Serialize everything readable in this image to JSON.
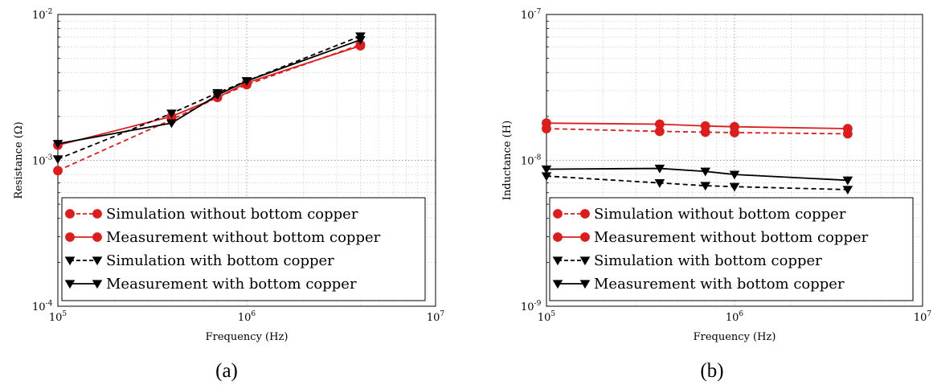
{
  "chart_data": [
    {
      "type": "line",
      "caption": "(a)",
      "xlabel": "Frequency (Hz)",
      "ylabel": "Resistance (Ω)",
      "xscale": "log",
      "yscale": "log",
      "xlim": [
        100000,
        10000000
      ],
      "ylim": [
        0.0001,
        0.01
      ],
      "x_ticks": [
        {
          "base": "10",
          "exp": "5"
        },
        {
          "base": "10",
          "exp": "6"
        },
        {
          "base": "10",
          "exp": "7"
        }
      ],
      "y_ticks": [
        {
          "base": "10",
          "exp": "-4"
        },
        {
          "base": "10",
          "exp": "-3"
        },
        {
          "base": "10",
          "exp": "-2"
        }
      ],
      "grid": true,
      "legend_position": "lower-right",
      "series": [
        {
          "name": "Simulation without bottom copper",
          "color": "#dd1c1c",
          "linestyle": "dashed",
          "marker": "circle",
          "x": [
            100000,
            400000,
            700000,
            1000000,
            4000000
          ],
          "y": [
            0.00085,
            0.0019,
            0.0027,
            0.0033,
            0.0062
          ]
        },
        {
          "name": "Measurement without bottom copper",
          "color": "#dd1c1c",
          "linestyle": "solid",
          "marker": "circle",
          "x": [
            100000,
            400000,
            700000,
            1000000,
            4000000
          ],
          "y": [
            0.00127,
            0.002,
            0.0027,
            0.0034,
            0.0061
          ]
        },
        {
          "name": "Simulation with bottom copper",
          "color": "#000000",
          "linestyle": "dashed",
          "marker": "triangle-down",
          "x": [
            100000,
            400000,
            700000,
            1000000,
            4000000
          ],
          "y": [
            0.00102,
            0.0021,
            0.0029,
            0.0035,
            0.0071
          ]
        },
        {
          "name": "Measurement with bottom copper",
          "color": "#000000",
          "linestyle": "solid",
          "marker": "triangle-down",
          "x": [
            100000,
            400000,
            700000,
            1000000,
            4000000
          ],
          "y": [
            0.0013,
            0.0018,
            0.0028,
            0.0035,
            0.0067
          ]
        }
      ]
    },
    {
      "type": "line",
      "caption": "(b)",
      "xlabel": "Frequency (Hz)",
      "ylabel": "Inductance (H)",
      "xscale": "log",
      "yscale": "log",
      "xlim": [
        100000,
        10000000
      ],
      "ylim": [
        1e-09,
        1e-07
      ],
      "x_ticks": [
        {
          "base": "10",
          "exp": "5"
        },
        {
          "base": "10",
          "exp": "6"
        },
        {
          "base": "10",
          "exp": "7"
        }
      ],
      "y_ticks": [
        {
          "base": "10",
          "exp": "-9"
        },
        {
          "base": "10",
          "exp": "-8"
        },
        {
          "base": "10",
          "exp": "-7"
        }
      ],
      "grid": true,
      "legend_position": "lower-right",
      "series": [
        {
          "name": "Simulation without bottom copper",
          "color": "#dd1c1c",
          "linestyle": "dashed",
          "marker": "circle",
          "x": [
            100000,
            400000,
            700000,
            1000000,
            4000000
          ],
          "y": [
            1.65e-08,
            1.58e-08,
            1.56e-08,
            1.55e-08,
            1.52e-08
          ]
        },
        {
          "name": "Measurement without bottom copper",
          "color": "#dd1c1c",
          "linestyle": "solid",
          "marker": "circle",
          "x": [
            100000,
            400000,
            700000,
            1000000,
            4000000
          ],
          "y": [
            1.8e-08,
            1.77e-08,
            1.72e-08,
            1.7e-08,
            1.65e-08
          ]
        },
        {
          "name": "Simulation with bottom copper",
          "color": "#000000",
          "linestyle": "dashed",
          "marker": "triangle-down",
          "x": [
            100000,
            400000,
            700000,
            1000000,
            4000000
          ],
          "y": [
            7.8e-09,
            7e-09,
            6.7e-09,
            6.6e-09,
            6.3e-09
          ]
        },
        {
          "name": "Measurement with bottom copper",
          "color": "#000000",
          "linestyle": "solid",
          "marker": "triangle-down",
          "x": [
            100000,
            400000,
            700000,
            1000000,
            4000000
          ],
          "y": [
            8.7e-09,
            8.8e-09,
            8.4e-09,
            8e-09,
            7.3e-09
          ]
        }
      ]
    }
  ]
}
